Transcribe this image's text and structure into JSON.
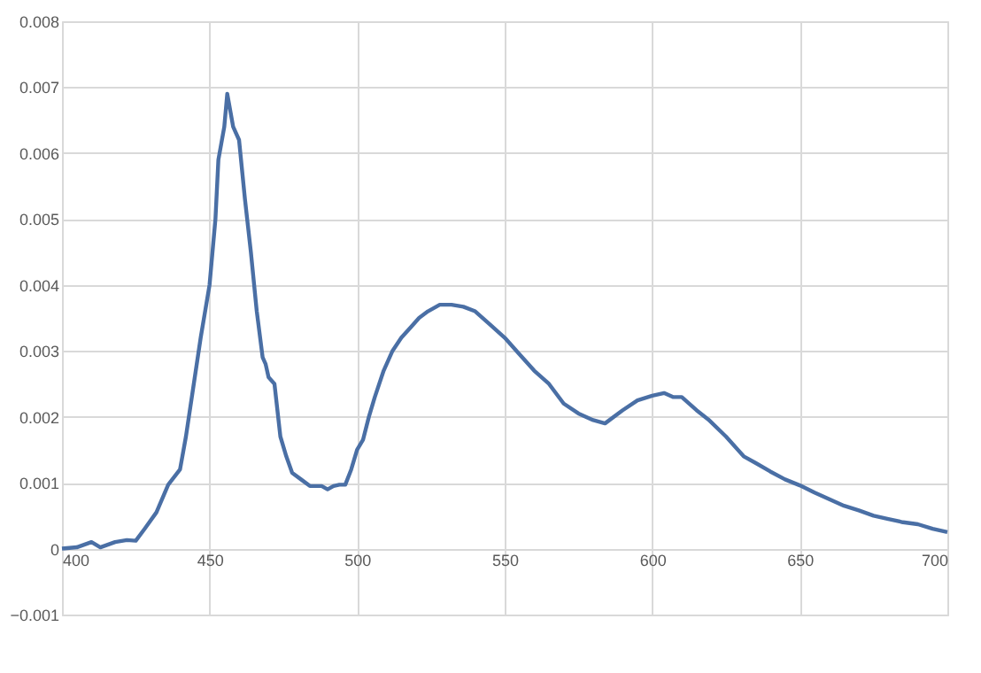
{
  "chart_data": {
    "type": "line",
    "xlim": [
      400,
      700
    ],
    "xticks": [
      400,
      450,
      500,
      550,
      600,
      650,
      700
    ],
    "ylim": [
      -0.001,
      0.008
    ],
    "yticks": [
      -0.001,
      0,
      0.001,
      0.002,
      0.003,
      0.004,
      0.005,
      0.006,
      0.007,
      0.008
    ],
    "grid": true,
    "marker": "none",
    "line_style": "solid",
    "series": [
      {
        "color": "#4a6fa5",
        "x": [
          400,
          405,
          410,
          413,
          418,
          422,
          425,
          428,
          432,
          436,
          440,
          442,
          444,
          447,
          450,
          452,
          453,
          455,
          456,
          458,
          460,
          462,
          464,
          466,
          468,
          469,
          470,
          472,
          474,
          476,
          478,
          481,
          484,
          488,
          490,
          492,
          494,
          496,
          498,
          500,
          502,
          504,
          506,
          509,
          512,
          515,
          518,
          521,
          524,
          528,
          532,
          536,
          540,
          545,
          550,
          555,
          560,
          565,
          570,
          575,
          580,
          584,
          590,
          595,
          600,
          604,
          607,
          610,
          615,
          619,
          625,
          631,
          635,
          640,
          645,
          650,
          655,
          660,
          665,
          670,
          675,
          680,
          685,
          690,
          695,
          700
        ],
        "values": [
          0,
          2e-05,
          0.0001,
          2e-05,
          0.0001,
          0.00013,
          0.00012,
          0.0003,
          0.00055,
          0.00097,
          0.0012,
          0.0017,
          0.0023,
          0.0032,
          0.004,
          0.005,
          0.0059,
          0.0064,
          0.0069,
          0.0064,
          0.0062,
          0.0053,
          0.0045,
          0.0036,
          0.0029,
          0.0028,
          0.0026,
          0.0025,
          0.0017,
          0.0014,
          0.00115,
          0.00105,
          0.00095,
          0.00095,
          0.0009,
          0.00095,
          0.00097,
          0.00097,
          0.0012,
          0.0015,
          0.00165,
          0.002,
          0.0023,
          0.0027,
          0.003,
          0.0032,
          0.00335,
          0.0035,
          0.0036,
          0.0037,
          0.0037,
          0.00367,
          0.0036,
          0.0034,
          0.0032,
          0.00295,
          0.0027,
          0.0025,
          0.0022,
          0.00205,
          0.00195,
          0.0019,
          0.0021,
          0.00225,
          0.00232,
          0.00236,
          0.0023,
          0.0023,
          0.0021,
          0.00196,
          0.0017,
          0.0014,
          0.0013,
          0.00117,
          0.00105,
          0.00096,
          0.00085,
          0.00075,
          0.00065,
          0.00058,
          0.0005,
          0.00045,
          0.0004,
          0.00037,
          0.0003,
          0.00025
        ]
      }
    ]
  }
}
